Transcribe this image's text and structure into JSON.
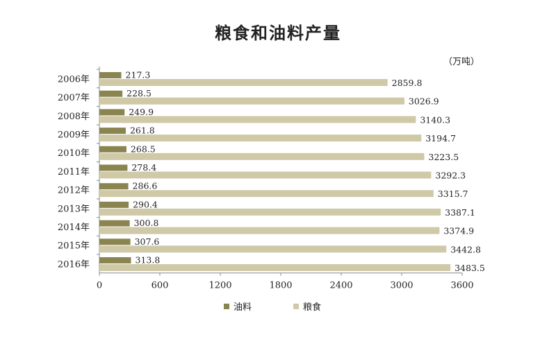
{
  "title": "粮食和油料产量",
  "unit": "（万吨）",
  "colors": {
    "oil": "#8a8450",
    "grain": "#cfc9a8",
    "axis": "#888888"
  },
  "legend": {
    "oil": "油料",
    "grain": "粮食"
  },
  "chart_data": {
    "type": "bar",
    "orientation": "horizontal",
    "categories": [
      "2006年",
      "2007年",
      "2008年",
      "2009年",
      "2010年",
      "2011年",
      "2012年",
      "2013年",
      "2014年",
      "2015年",
      "2016年"
    ],
    "series": [
      {
        "name": "油料",
        "values": [
          217.3,
          228.5,
          249.9,
          261.8,
          268.5,
          278.4,
          286.6,
          290.4,
          300.8,
          307.6,
          313.8
        ]
      },
      {
        "name": "粮食",
        "values": [
          2859.8,
          3026.9,
          3140.3,
          3194.7,
          3223.5,
          3292.3,
          3315.7,
          3387.1,
          3374.9,
          3442.8,
          3483.5
        ]
      }
    ],
    "value_labels": {
      "oil": [
        "217.3",
        "228.5",
        "249.9",
        "261.8",
        "268.5",
        "278.4",
        "286.6",
        "290.4",
        "300.8",
        "307.6",
        "313.8"
      ],
      "grain": [
        "2859.8",
        "3026.9",
        "3140.3",
        "3194.7",
        "3223.5",
        "3292.3",
        "3315.7",
        "3387.1",
        "3374.9",
        "3442.8",
        "3483.5"
      ]
    },
    "xlim": [
      0,
      3600
    ],
    "xticks": [
      0,
      600,
      1200,
      1800,
      2400,
      3000,
      3600
    ],
    "xtick_labels": [
      "0",
      "600",
      "1200",
      "1800",
      "2400",
      "3000",
      "3600"
    ],
    "title": "粮食和油料产量",
    "xlabel": "",
    "ylabel": "",
    "legend_position": "bottom"
  }
}
